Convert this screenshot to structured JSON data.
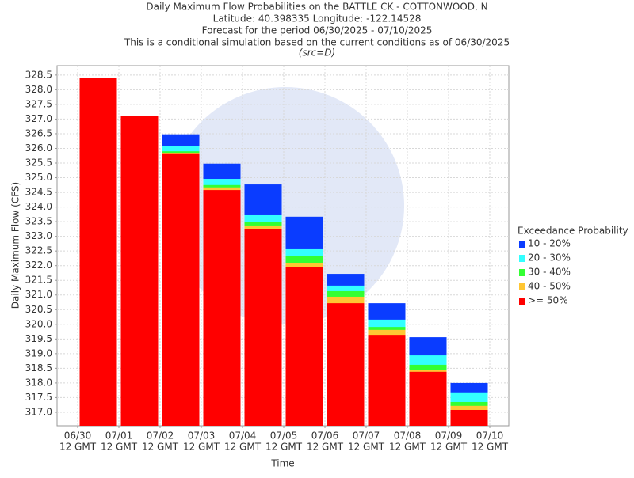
{
  "chart_data": {
    "type": "overlap_bar",
    "title": [
      "Daily Maximum Flow Probabilities on the BATTLE CK - COTTONWOOD, N",
      "Latitude: 40.398335 Longitude: -122.14528",
      "Forecast for the period 06/30/2025 - 07/10/2025",
      "This is a conditional simulation based on the current conditions as of 06/30/2025"
    ],
    "subtitle": "(src=D)",
    "y_label": "Daily Maximum Flow (CFS)",
    "x_label": "Time",
    "xticks": [
      "06/30",
      "07/01",
      "07/02",
      "07/03",
      "07/04",
      "07/05",
      "07/06",
      "07/07",
      "07/08",
      "07/09",
      "07/10"
    ],
    "xtick_suffix": "12 GMT",
    "legend_title": "Exceedance Probability",
    "legend": "right",
    "grid": true,
    "ylim": [
      316.54,
      328.82
    ],
    "yticks": [
      {
        "value": 317,
        "label": "317.0"
      },
      317.5,
      {
        "value": 318,
        "label": "318.0"
      },
      318.5,
      {
        "value": 319,
        "label": "319.0"
      },
      319.5,
      {
        "value": 320,
        "label": "320.0"
      },
      320.5,
      {
        "value": 321,
        "label": "321.0"
      },
      321.5,
      {
        "value": 322,
        "label": "322.0"
      },
      322.5,
      {
        "value": 323,
        "label": "323.0"
      },
      323.5,
      {
        "value": 324,
        "label": "324.0"
      },
      324.5,
      {
        "value": 325,
        "label": "325.0"
      },
      325.5,
      {
        "value": 326,
        "label": "326.0"
      },
      326.5,
      {
        "value": 327,
        "label": "327.0"
      },
      327.5,
      {
        "value": 328,
        "label": "328.0"
      },
      328.5
    ],
    "series": [
      {
        "name": "10 - 20%",
        "color": "#0a3cff",
        "values": [
          328.4,
          327.1,
          326.48,
          325.48,
          324.77,
          323.67,
          321.72,
          320.72,
          319.56,
          318.0
        ]
      },
      {
        "name": "20 - 30%",
        "color": "#33ffff",
        "values": [
          328.4,
          327.1,
          326.07,
          324.96,
          323.72,
          322.56,
          321.32,
          320.16,
          318.94,
          317.68
        ]
      },
      {
        "name": "30 - 40%",
        "color": "#33ff33",
        "values": [
          328.4,
          327.1,
          325.9,
          324.75,
          323.48,
          322.34,
          321.13,
          319.91,
          318.62,
          317.35
        ]
      },
      {
        "name": "40 - 50%",
        "color": "#ffc633",
        "values": [
          328.4,
          327.1,
          325.85,
          324.67,
          323.37,
          322.1,
          320.94,
          319.81,
          318.43,
          317.22
        ]
      },
      {
        "name": ">= 50%",
        "color": "#ff0000",
        "values": [
          328.4,
          327.1,
          325.83,
          324.58,
          323.26,
          321.94,
          320.72,
          319.64,
          318.38,
          317.08
        ]
      }
    ]
  }
}
